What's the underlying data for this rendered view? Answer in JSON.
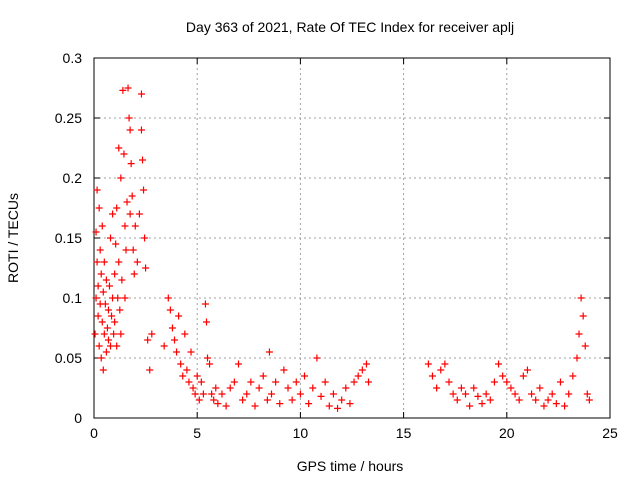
{
  "chart_data": {
    "type": "scatter",
    "title": "Day 363 of 2021, Rate Of TEC Index for receiver aplj",
    "xlabel": "GPS time / hours",
    "ylabel": "ROTI / TECUs",
    "xlim": [
      0,
      25
    ],
    "ylim": [
      0,
      0.3
    ],
    "x_ticks": [
      "0",
      "5",
      "10",
      "15",
      "20",
      "25"
    ],
    "y_ticks": [
      "0",
      "0.05",
      "0.1",
      "0.15",
      "0.2",
      "0.25",
      "0.3"
    ],
    "grid": true,
    "marker": "plus",
    "color": "#ff0000",
    "series": [
      {
        "points": [
          [
            0.05,
            0.07
          ],
          [
            0.1,
            0.155
          ],
          [
            0.1,
            0.1
          ],
          [
            0.15,
            0.19
          ],
          [
            0.15,
            0.13
          ],
          [
            0.2,
            0.085
          ],
          [
            0.2,
            0.11
          ],
          [
            0.25,
            0.175
          ],
          [
            0.25,
            0.06
          ],
          [
            0.3,
            0.14
          ],
          [
            0.3,
            0.095
          ],
          [
            0.35,
            0.12
          ],
          [
            0.35,
            0.05
          ],
          [
            0.4,
            0.16
          ],
          [
            0.4,
            0.08
          ],
          [
            0.45,
            0.105
          ],
          [
            0.45,
            0.04
          ],
          [
            0.5,
            0.13
          ],
          [
            0.5,
            0.07
          ],
          [
            0.55,
            0.095
          ],
          [
            0.6,
            0.115
          ],
          [
            0.6,
            0.055
          ],
          [
            0.65,
            0.075
          ],
          [
            0.7,
            0.09
          ],
          [
            0.7,
            0.065
          ],
          [
            0.75,
            0.11
          ],
          [
            0.8,
            0.06
          ],
          [
            0.8,
            0.15
          ],
          [
            0.85,
            0.085
          ],
          [
            0.9,
            0.17
          ],
          [
            0.9,
            0.1
          ],
          [
            0.95,
            0.07
          ],
          [
            1.0,
            0.12
          ],
          [
            1.0,
            0.08
          ],
          [
            1.05,
            0.145
          ],
          [
            1.1,
            0.06
          ],
          [
            1.1,
            0.175
          ],
          [
            1.15,
            0.1
          ],
          [
            1.2,
            0.225
          ],
          [
            1.2,
            0.13
          ],
          [
            1.25,
            0.09
          ],
          [
            1.3,
            0.2
          ],
          [
            1.3,
            0.07
          ],
          [
            1.35,
            0.115
          ],
          [
            1.4,
            0.273
          ],
          [
            1.45,
            0.22
          ],
          [
            1.5,
            0.16
          ],
          [
            1.5,
            0.1
          ],
          [
            1.55,
            0.14
          ],
          [
            1.6,
            0.18
          ],
          [
            1.65,
            0.275
          ],
          [
            1.7,
            0.25
          ],
          [
            1.75,
            0.24
          ],
          [
            1.75,
            0.17
          ],
          [
            1.8,
            0.212
          ],
          [
            1.85,
            0.185
          ],
          [
            1.9,
            0.14
          ],
          [
            1.95,
            0.12
          ],
          [
            2.0,
            0.16
          ],
          [
            2.1,
            0.13
          ],
          [
            2.2,
            0.17
          ],
          [
            2.3,
            0.27
          ],
          [
            2.3,
            0.24
          ],
          [
            2.35,
            0.215
          ],
          [
            2.4,
            0.19
          ],
          [
            2.45,
            0.15
          ],
          [
            2.5,
            0.125
          ],
          [
            2.6,
            0.065
          ],
          [
            2.7,
            0.04
          ],
          [
            2.8,
            0.07
          ],
          [
            3.4,
            0.06
          ],
          [
            3.6,
            0.1
          ],
          [
            3.7,
            0.09
          ],
          [
            3.8,
            0.075
          ],
          [
            3.9,
            0.065
          ],
          [
            4.0,
            0.055
          ],
          [
            4.1,
            0.085
          ],
          [
            4.2,
            0.045
          ],
          [
            4.3,
            0.035
          ],
          [
            4.4,
            0.07
          ],
          [
            4.5,
            0.04
          ],
          [
            4.6,
            0.03
          ],
          [
            4.7,
            0.055
          ],
          [
            4.8,
            0.025
          ],
          [
            4.9,
            0.02
          ],
          [
            5.0,
            0.035
          ],
          [
            5.1,
            0.015
          ],
          [
            5.2,
            0.03
          ],
          [
            5.3,
            0.02
          ],
          [
            5.4,
            0.095
          ],
          [
            5.45,
            0.08
          ],
          [
            5.5,
            0.05
          ],
          [
            5.6,
            0.045
          ],
          [
            5.7,
            0.02
          ],
          [
            5.8,
            0.015
          ],
          [
            5.9,
            0.025
          ],
          [
            6.0,
            0.012
          ],
          [
            6.2,
            0.02
          ],
          [
            6.4,
            0.01
          ],
          [
            6.6,
            0.025
          ],
          [
            6.8,
            0.03
          ],
          [
            7.0,
            0.045
          ],
          [
            7.2,
            0.015
          ],
          [
            7.4,
            0.02
          ],
          [
            7.6,
            0.03
          ],
          [
            7.8,
            0.01
          ],
          [
            8.0,
            0.025
          ],
          [
            8.2,
            0.035
          ],
          [
            8.4,
            0.015
          ],
          [
            8.5,
            0.055
          ],
          [
            8.6,
            0.02
          ],
          [
            8.8,
            0.03
          ],
          [
            9.0,
            0.012
          ],
          [
            9.2,
            0.04
          ],
          [
            9.4,
            0.025
          ],
          [
            9.6,
            0.015
          ],
          [
            9.8,
            0.03
          ],
          [
            10.0,
            0.02
          ],
          [
            10.2,
            0.035
          ],
          [
            10.4,
            0.012
          ],
          [
            10.6,
            0.025
          ],
          [
            10.8,
            0.05
          ],
          [
            11.0,
            0.018
          ],
          [
            11.2,
            0.03
          ],
          [
            11.4,
            0.01
          ],
          [
            11.6,
            0.02
          ],
          [
            11.8,
            0.008
          ],
          [
            12.0,
            0.015
          ],
          [
            12.2,
            0.025
          ],
          [
            12.4,
            0.012
          ],
          [
            12.6,
            0.03
          ],
          [
            12.8,
            0.035
          ],
          [
            13.0,
            0.04
          ],
          [
            13.2,
            0.045
          ],
          [
            13.3,
            0.03
          ],
          [
            16.2,
            0.045
          ],
          [
            16.4,
            0.035
          ],
          [
            16.6,
            0.025
          ],
          [
            16.8,
            0.04
          ],
          [
            17.0,
            0.045
          ],
          [
            17.2,
            0.03
          ],
          [
            17.4,
            0.02
          ],
          [
            17.6,
            0.015
          ],
          [
            17.8,
            0.025
          ],
          [
            18.0,
            0.02
          ],
          [
            18.2,
            0.01
          ],
          [
            18.4,
            0.025
          ],
          [
            18.6,
            0.018
          ],
          [
            18.8,
            0.012
          ],
          [
            19.0,
            0.02
          ],
          [
            19.2,
            0.015
          ],
          [
            19.4,
            0.03
          ],
          [
            19.6,
            0.045
          ],
          [
            19.8,
            0.035
          ],
          [
            20.0,
            0.03
          ],
          [
            20.2,
            0.025
          ],
          [
            20.4,
            0.02
          ],
          [
            20.6,
            0.015
          ],
          [
            20.8,
            0.035
          ],
          [
            21.0,
            0.04
          ],
          [
            21.2,
            0.02
          ],
          [
            21.4,
            0.015
          ],
          [
            21.6,
            0.025
          ],
          [
            21.8,
            0.01
          ],
          [
            22.0,
            0.015
          ],
          [
            22.2,
            0.02
          ],
          [
            22.4,
            0.012
          ],
          [
            22.6,
            0.03
          ],
          [
            22.8,
            0.01
          ],
          [
            23.0,
            0.02
          ],
          [
            23.2,
            0.035
          ],
          [
            23.4,
            0.05
          ],
          [
            23.5,
            0.07
          ],
          [
            23.6,
            0.1
          ],
          [
            23.7,
            0.085
          ],
          [
            23.8,
            0.06
          ],
          [
            23.9,
            0.02
          ],
          [
            24.0,
            0.015
          ]
        ]
      }
    ]
  }
}
